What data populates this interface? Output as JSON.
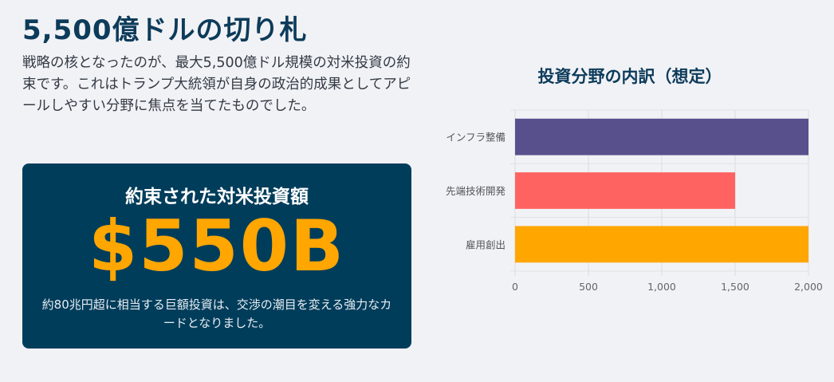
{
  "page": {
    "title": "5,500億ドルの切り札",
    "description": "戦略の核となったのが、最大5,500億ドル規模の対米投資の約束です。これはトランプ大統領が自身の政治的成果としてアピールしやすい分野に焦点を当てたものでした。"
  },
  "card": {
    "label": "約束された対米投資額",
    "amount": "$550B",
    "note": "約80兆円超に相当する巨額投資は、交渉の潮目を変える強力なカードとなりました。"
  },
  "chart_data": {
    "type": "bar",
    "orientation": "horizontal",
    "title": "投資分野の内訳（想定）",
    "categories": [
      "インフラ整備",
      "先端技術開発",
      "雇用創出"
    ],
    "values": [
      2000,
      1500,
      2000
    ],
    "colors": [
      "#58508d",
      "#ff6361",
      "#ffa600"
    ],
    "xlim": [
      0,
      2000
    ],
    "xticks": [
      "0",
      "500",
      "1,000",
      "1,500",
      "2,000"
    ],
    "grid": true
  }
}
